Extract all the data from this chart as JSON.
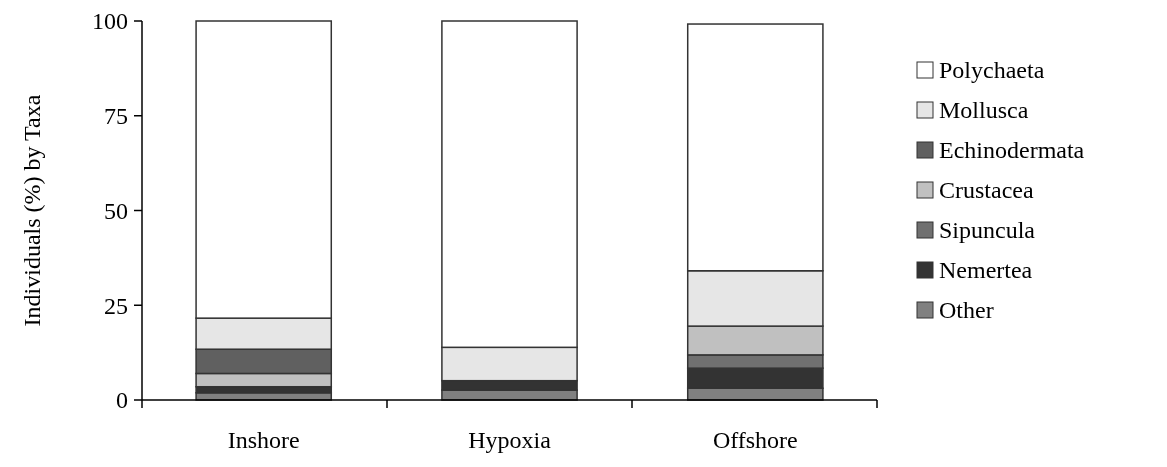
{
  "chart_data": {
    "type": "bar",
    "stacked": true,
    "ylabel": "Individuals (%) by Taxa",
    "categories": [
      "Inshore",
      "Hypoxia",
      "Offshore"
    ],
    "ylim": [
      0,
      100
    ],
    "yticks": [
      0,
      25,
      50,
      75,
      100
    ],
    "grid": false,
    "legend": "right",
    "series": [
      {
        "name": "Other",
        "color": "#808080",
        "values": [
          1.9,
          2.6,
          3.1
        ]
      },
      {
        "name": "Nemertea",
        "color": "#333333",
        "values": [
          1.6,
          2.5,
          5.3
        ]
      },
      {
        "name": "Sipuncula",
        "color": "#707070",
        "values": [
          0,
          0,
          3.5
        ]
      },
      {
        "name": "Crustacea",
        "color": "#c0c0c0",
        "values": [
          3.5,
          0,
          7.6
        ]
      },
      {
        "name": "Echinodermata",
        "color": "#606060",
        "values": [
          6.4,
          0,
          0
        ]
      },
      {
        "name": "Mollusca",
        "color": "#e6e6e6",
        "values": [
          8.2,
          8.8,
          14.6
        ]
      },
      {
        "name": "Polychaeta",
        "color": "#ffffff",
        "values": [
          78.4,
          86.1,
          65.1
        ]
      }
    ]
  }
}
